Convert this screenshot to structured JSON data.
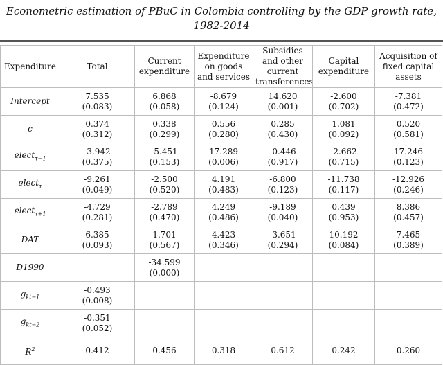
{
  "title": {
    "line1": "Econometric estimation of PBuC in Colombia controlling by the GDP growth rate,",
    "line2": "1982-2014"
  },
  "columns": [
    "Expenditure",
    "Total",
    "Current expenditure",
    "Expenditure on goods and services",
    "Subsidies and other current transferences",
    "Capital expenditure",
    "Acquisition of fixed capital assets"
  ],
  "rows": [
    {
      "label": "Intercept",
      "cells": [
        [
          "7.535",
          "(0.083)"
        ],
        [
          "6.868",
          "(0.058)"
        ],
        [
          "-8.679",
          "(0.124)"
        ],
        [
          "14.620",
          "(0.001)"
        ],
        [
          "-2.600",
          "(0.702)"
        ],
        [
          "-7.381",
          "(0.472)"
        ]
      ]
    },
    {
      "label": "c",
      "cells": [
        [
          "0.374",
          "(0.312)"
        ],
        [
          "0.338",
          "(0.299)"
        ],
        [
          "0.556",
          "(0.280)"
        ],
        [
          "0.285",
          "(0.430)"
        ],
        [
          "1.081",
          "(0.092)"
        ],
        [
          "0.520",
          "(0.581)"
        ]
      ]
    },
    {
      "label": "elect",
      "sub": "τ−1",
      "cells": [
        [
          "-3.942",
          "(0.375)"
        ],
        [
          "-5.451",
          "(0.153)"
        ],
        [
          "17.289",
          "(0.006)"
        ],
        [
          "-0.446",
          "(0.917)"
        ],
        [
          "-2.662",
          "(0.715)"
        ],
        [
          "17.246",
          "(0.123)"
        ]
      ]
    },
    {
      "label": "elect",
      "sub": "τ",
      "cells": [
        [
          "-9.261",
          "(0.049)"
        ],
        [
          "-2.500",
          "(0.520)"
        ],
        [
          "4.191",
          "(0.483)"
        ],
        [
          "-6.800",
          "(0.123)"
        ],
        [
          "-11.738",
          "(0.117)"
        ],
        [
          "-12.926",
          "(0.246)"
        ]
      ]
    },
    {
      "label": "elect",
      "sub": "τ+1",
      "cells": [
        [
          "-4.729",
          "(0.281)"
        ],
        [
          "-2.789",
          "(0.470)"
        ],
        [
          "4.249",
          "(0.486)"
        ],
        [
          "-9.189",
          "(0.040)"
        ],
        [
          "0.439",
          "(0.953)"
        ],
        [
          "8.386",
          "(0.457)"
        ]
      ]
    },
    {
      "label": "DAT",
      "cells": [
        [
          "6.385",
          "(0.093)"
        ],
        [
          "1.701",
          "(0.567)"
        ],
        [
          "4.423",
          "(0.346)"
        ],
        [
          "-3.651",
          "(0.294)"
        ],
        [
          "10.192",
          "(0.084)"
        ],
        [
          "7.465",
          "(0.389)"
        ]
      ]
    },
    {
      "label": "D1990",
      "cells": [
        [],
        [
          "-34.599",
          "(0.000)"
        ],
        [],
        [],
        [],
        []
      ]
    },
    {
      "label": "g",
      "sub": "kt−1",
      "cells": [
        [
          "-0.493",
          "(0.008)"
        ],
        [],
        [],
        [],
        [],
        []
      ]
    },
    {
      "label": "g",
      "sub": "kt−2",
      "cells": [
        [
          "-0.351",
          "(0.052)"
        ],
        [],
        [],
        [],
        [],
        []
      ]
    },
    {
      "label": "R",
      "sup": "2",
      "cells": [
        [
          "0.412"
        ],
        [
          "0.456"
        ],
        [
          "0.318"
        ],
        [
          "0.612"
        ],
        [
          "0.242"
        ],
        [
          "0.260"
        ]
      ]
    }
  ]
}
